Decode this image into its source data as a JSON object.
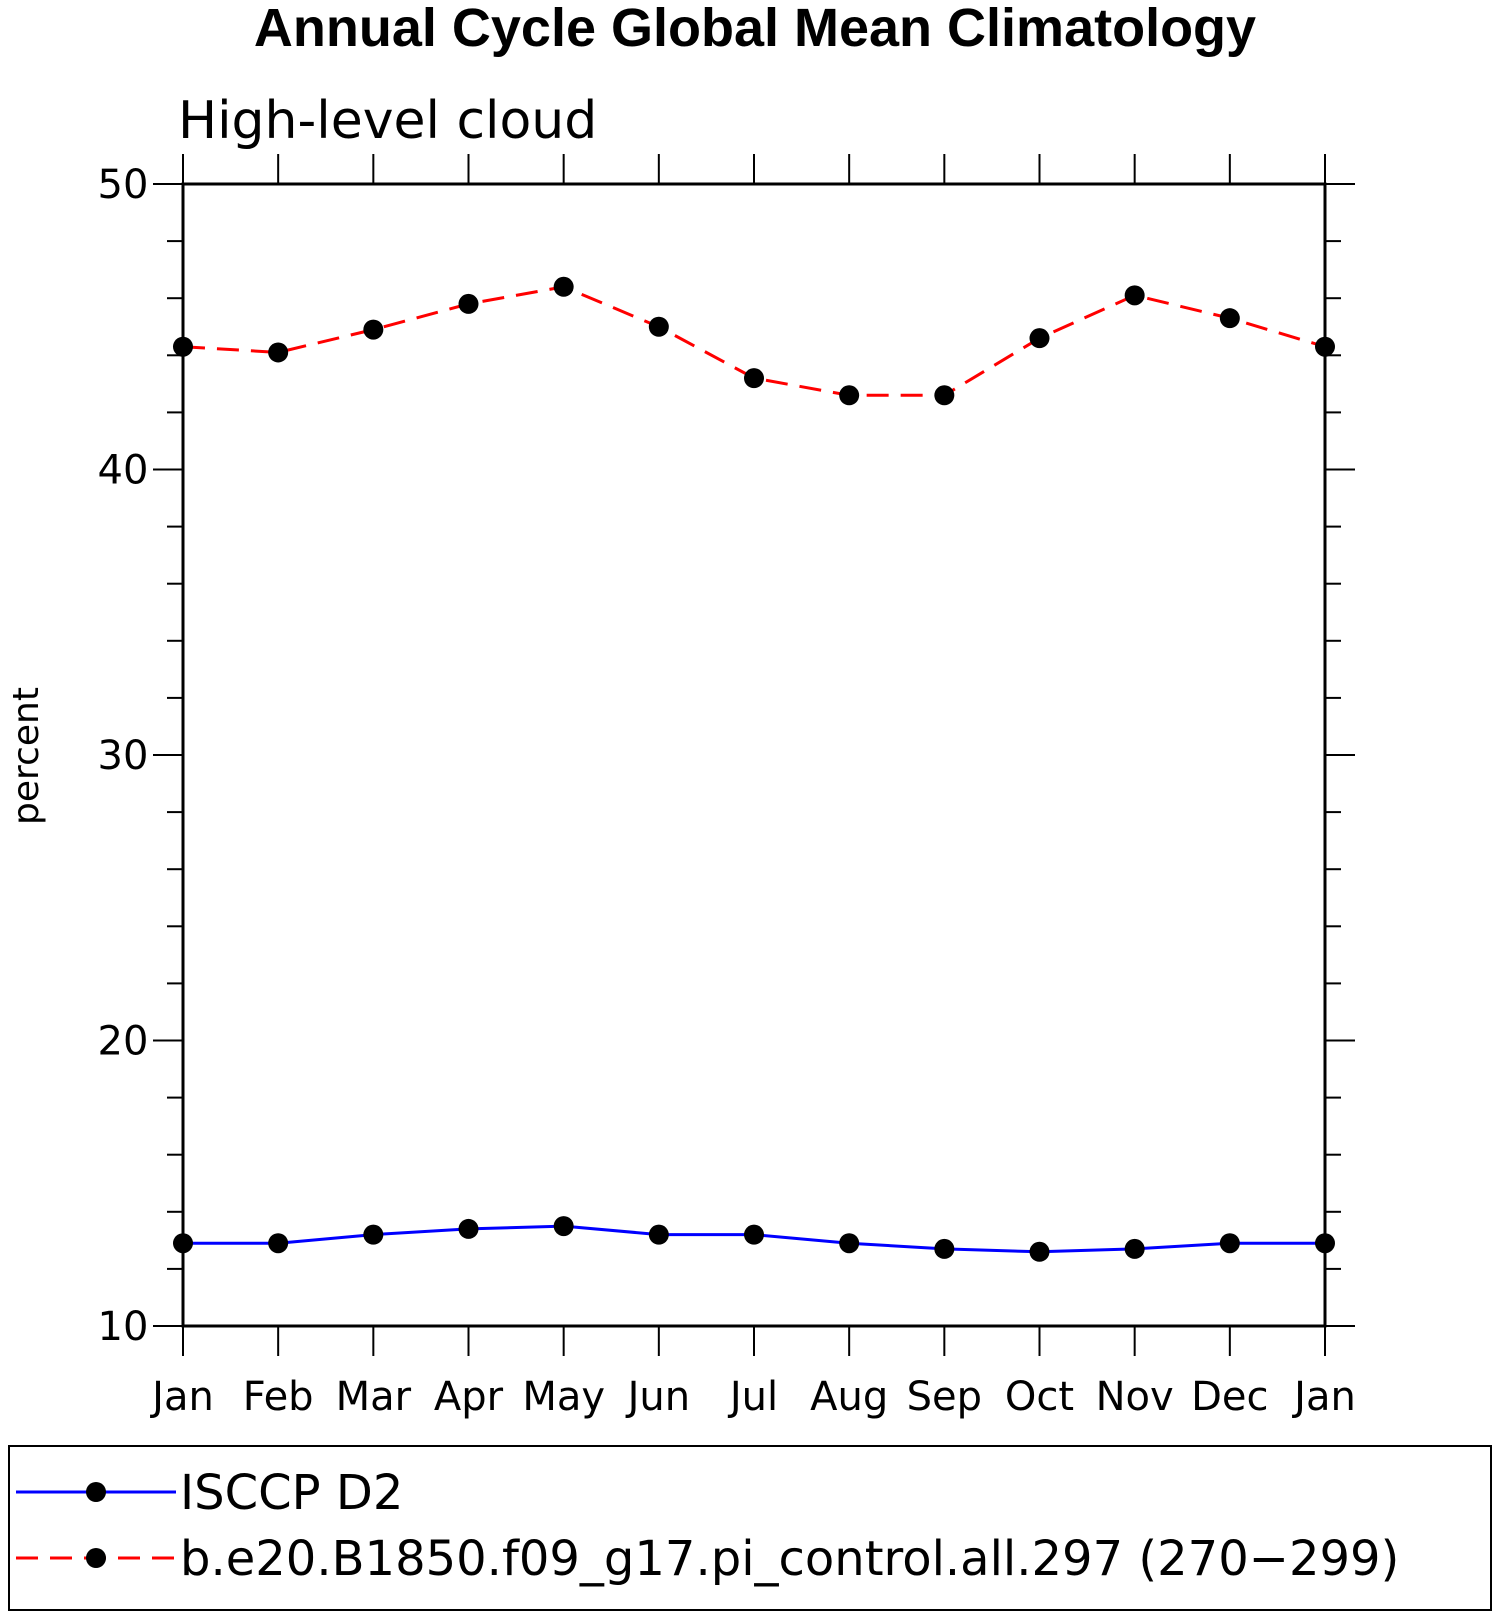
{
  "chart_data": {
    "type": "line",
    "title": "Annual Cycle Global Mean Climatology",
    "subtitle": "High-level cloud",
    "xlabel": "",
    "ylabel": "percent",
    "categories": [
      "Jan",
      "Feb",
      "Mar",
      "Apr",
      "May",
      "Jun",
      "Jul",
      "Aug",
      "Sep",
      "Oct",
      "Nov",
      "Dec",
      "Jan"
    ],
    "ylim": [
      10,
      50
    ],
    "yticks": [
      10,
      20,
      30,
      40,
      50
    ],
    "ytick_labels": [
      "10",
      "20",
      "30",
      "40",
      "50"
    ],
    "grid": false,
    "legend_position": "bottom",
    "series": [
      {
        "name": "ISCCP D2",
        "color": "#0000ff",
        "line_style": "solid",
        "marker": "filled-circle",
        "values": [
          12.9,
          12.9,
          13.2,
          13.4,
          13.5,
          13.2,
          13.2,
          12.9,
          12.7,
          12.6,
          12.7,
          12.9,
          12.9
        ]
      },
      {
        "name": "b.e20.B1850.f09_g17.pi_control.all.297 (270−299)",
        "color": "#ff0000",
        "line_style": "dashed",
        "marker": "filled-circle",
        "values": [
          44.3,
          44.1,
          44.9,
          45.8,
          46.4,
          45.0,
          43.2,
          42.6,
          42.6,
          44.6,
          46.1,
          45.3,
          44.3
        ]
      }
    ]
  }
}
